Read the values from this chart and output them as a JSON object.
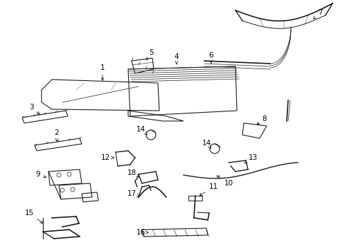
{
  "background_color": "#ffffff",
  "line_color": "#1a1a1a",
  "label_color": "#000000",
  "fig_width": 4.89,
  "fig_height": 3.6,
  "dpi": 100,
  "label_fontsize": 7.5,
  "lw": 0.8
}
